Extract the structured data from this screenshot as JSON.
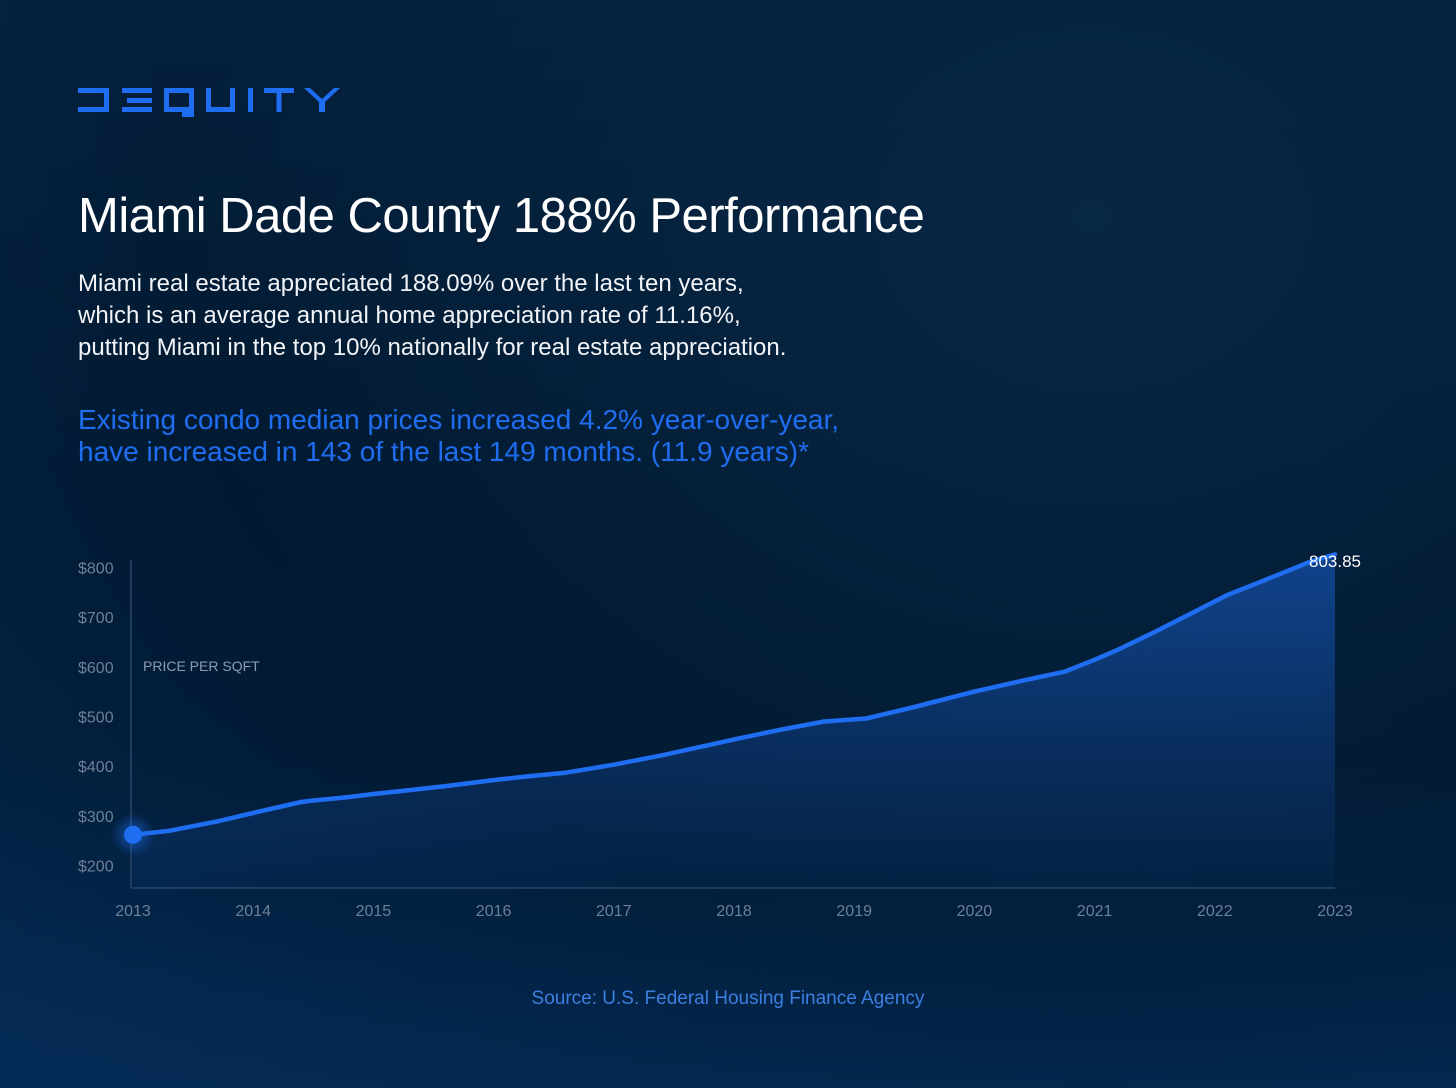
{
  "brand": {
    "logo_text": "DEQUITY",
    "color": "#1f6ef2"
  },
  "title": "Miami Dade County 188% Performance",
  "intro_lines": [
    "Miami real estate appreciated 188.09% over the last ten years,",
    "which is an average annual home appreciation rate of 11.16%,",
    "putting Miami in the top 10% nationally for real estate appreciation."
  ],
  "highlight_lines": [
    "Existing condo median prices increased 4.2% year-over-year,",
    "have increased in 143 of the last 149 months. (11.9 years)*"
  ],
  "source": "Source: U.S. Federal Housing Finance Agency",
  "colors": {
    "accent": "#1f6ef2",
    "axis_text": "#6f7f96",
    "background": "#031d36"
  },
  "chart_data": {
    "type": "area",
    "title": "",
    "xlabel": "",
    "ylabel": "PRICE PER SQFT",
    "x": [
      2013.0,
      2013.3,
      2013.7,
      2014.0,
      2014.4,
      2014.5,
      2014.8,
      2015.0,
      2015.3,
      2015.6,
      2016.0,
      2016.3,
      2016.6,
      2017.0,
      2017.4,
      2017.8,
      2018.0,
      2018.4,
      2018.75,
      2019.1,
      2019.5,
      2020.0,
      2020.4,
      2020.75,
      2021.0,
      2021.2,
      2021.5,
      2021.8,
      2022.1,
      2022.35,
      2022.8,
      2023.0
    ],
    "values": [
      262,
      270,
      289,
      306,
      328,
      331,
      338,
      344,
      352,
      360,
      372,
      380,
      387,
      403,
      422,
      443,
      454,
      474,
      490,
      496,
      519,
      550,
      572,
      590,
      614,
      635,
      670,
      707,
      744,
      768,
      812,
      826
    ],
    "end_label": "803.85",
    "xticks": [
      "2013",
      "2014",
      "2015",
      "2016",
      "2017",
      "2018",
      "2019",
      "2020",
      "2021",
      "2022",
      "2023"
    ],
    "yticks": [
      200,
      300,
      400,
      500,
      600,
      700,
      800
    ],
    "ytick_labels": [
      "$200",
      "$300",
      "$400",
      "$500",
      "$600",
      "$700",
      "$800"
    ],
    "ylim": [
      155,
      855
    ],
    "xlim": [
      2013,
      2023
    ],
    "grid": false,
    "line_color": "#1f6ef2"
  }
}
